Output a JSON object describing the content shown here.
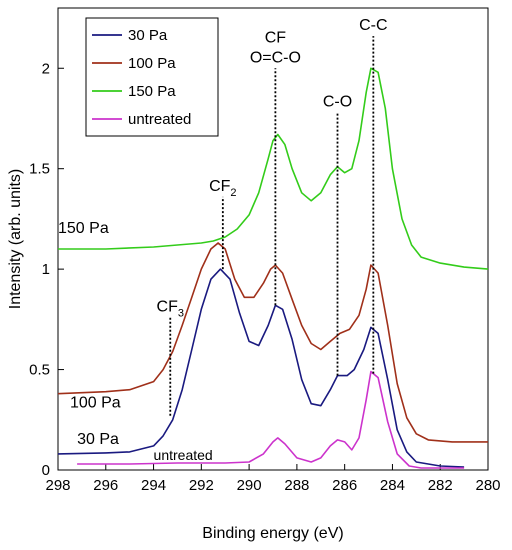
{
  "chart_data": {
    "type": "line",
    "xlabel": "Binding energy (eV)",
    "ylabel": "Intensity (arb. units)",
    "xlim": [
      298,
      280
    ],
    "ylim": [
      0,
      2.3
    ],
    "x_reversed": true,
    "x_ticks": [
      298,
      296,
      294,
      292,
      290,
      288,
      286,
      284,
      282,
      280
    ],
    "y_ticks": [
      0,
      0.5,
      1,
      1.5,
      2
    ],
    "y_tick_labels": [
      "0",
      "0.5",
      "1",
      "1.5",
      "2"
    ],
    "grid": false,
    "legend_position": "top-left",
    "series": [
      {
        "name": "30 Pa",
        "color": "#1a1a80",
        "label": "30 Pa",
        "points": [
          [
            298,
            0.08
          ],
          [
            296,
            0.085
          ],
          [
            295,
            0.09
          ],
          [
            294,
            0.12
          ],
          [
            293.6,
            0.17
          ],
          [
            293.2,
            0.25
          ],
          [
            292.8,
            0.4
          ],
          [
            292.4,
            0.6
          ],
          [
            292,
            0.8
          ],
          [
            291.6,
            0.95
          ],
          [
            291.2,
            1.0
          ],
          [
            290.8,
            0.95
          ],
          [
            290.4,
            0.78
          ],
          [
            290,
            0.64
          ],
          [
            289.6,
            0.62
          ],
          [
            289.2,
            0.72
          ],
          [
            288.9,
            0.82
          ],
          [
            288.6,
            0.8
          ],
          [
            288.2,
            0.65
          ],
          [
            287.8,
            0.45
          ],
          [
            287.4,
            0.33
          ],
          [
            287,
            0.32
          ],
          [
            286.6,
            0.4
          ],
          [
            286.3,
            0.47
          ],
          [
            285.9,
            0.47
          ],
          [
            285.6,
            0.5
          ],
          [
            285.2,
            0.6
          ],
          [
            284.9,
            0.71
          ],
          [
            284.6,
            0.68
          ],
          [
            284.2,
            0.45
          ],
          [
            283.8,
            0.2
          ],
          [
            283.4,
            0.09
          ],
          [
            283,
            0.04
          ],
          [
            282,
            0.02
          ],
          [
            281,
            0.015
          ]
        ]
      },
      {
        "name": "100 Pa",
        "color": "#a0301a",
        "label": "100 Pa",
        "points": [
          [
            298,
            0.38
          ],
          [
            296,
            0.39
          ],
          [
            295,
            0.4
          ],
          [
            294,
            0.44
          ],
          [
            293.6,
            0.5
          ],
          [
            293.2,
            0.59
          ],
          [
            292.8,
            0.72
          ],
          [
            292.4,
            0.86
          ],
          [
            292,
            1.0
          ],
          [
            291.6,
            1.1
          ],
          [
            291.3,
            1.13
          ],
          [
            291,
            1.1
          ],
          [
            290.6,
            0.95
          ],
          [
            290.2,
            0.86
          ],
          [
            289.8,
            0.86
          ],
          [
            289.4,
            0.93
          ],
          [
            289.1,
            1.0
          ],
          [
            288.9,
            1.02
          ],
          [
            288.6,
            0.98
          ],
          [
            288.2,
            0.85
          ],
          [
            287.8,
            0.72
          ],
          [
            287.4,
            0.63
          ],
          [
            287,
            0.6
          ],
          [
            286.6,
            0.64
          ],
          [
            286.2,
            0.68
          ],
          [
            285.8,
            0.7
          ],
          [
            285.4,
            0.77
          ],
          [
            285.1,
            0.9
          ],
          [
            284.9,
            1.02
          ],
          [
            284.6,
            0.98
          ],
          [
            284.2,
            0.72
          ],
          [
            283.8,
            0.43
          ],
          [
            283.4,
            0.26
          ],
          [
            283,
            0.18
          ],
          [
            282.5,
            0.15
          ],
          [
            281.5,
            0.14
          ],
          [
            280,
            0.14
          ]
        ]
      },
      {
        "name": "150 Pa",
        "color": "#33cc1a",
        "label": "150 Pa",
        "points": [
          [
            298,
            1.1
          ],
          [
            296,
            1.1
          ],
          [
            294,
            1.11
          ],
          [
            293,
            1.12
          ],
          [
            292,
            1.13
          ],
          [
            291.5,
            1.14
          ],
          [
            291,
            1.16
          ],
          [
            290.5,
            1.2
          ],
          [
            290,
            1.27
          ],
          [
            289.6,
            1.38
          ],
          [
            289.2,
            1.55
          ],
          [
            289,
            1.64
          ],
          [
            288.8,
            1.67
          ],
          [
            288.5,
            1.62
          ],
          [
            288.2,
            1.5
          ],
          [
            287.8,
            1.38
          ],
          [
            287.4,
            1.34
          ],
          [
            287,
            1.38
          ],
          [
            286.6,
            1.47
          ],
          [
            286.3,
            1.51
          ],
          [
            286,
            1.48
          ],
          [
            285.7,
            1.5
          ],
          [
            285.4,
            1.64
          ],
          [
            285.1,
            1.88
          ],
          [
            284.9,
            2.0
          ],
          [
            284.6,
            1.98
          ],
          [
            284.3,
            1.8
          ],
          [
            284,
            1.5
          ],
          [
            283.6,
            1.25
          ],
          [
            283.2,
            1.12
          ],
          [
            282.8,
            1.06
          ],
          [
            282,
            1.03
          ],
          [
            281,
            1.01
          ],
          [
            280,
            1.0
          ]
        ]
      },
      {
        "name": "untreated",
        "color": "#cc33cc",
        "label": "untreated",
        "points": [
          [
            297.2,
            0.03
          ],
          [
            295,
            0.03
          ],
          [
            293,
            0.035
          ],
          [
            291,
            0.035
          ],
          [
            290,
            0.04
          ],
          [
            289.4,
            0.08
          ],
          [
            289,
            0.14
          ],
          [
            288.8,
            0.16
          ],
          [
            288.5,
            0.13
          ],
          [
            288,
            0.06
          ],
          [
            287.4,
            0.04
          ],
          [
            287,
            0.06
          ],
          [
            286.6,
            0.12
          ],
          [
            286.3,
            0.15
          ],
          [
            286,
            0.14
          ],
          [
            285.7,
            0.1
          ],
          [
            285.4,
            0.16
          ],
          [
            285.1,
            0.35
          ],
          [
            284.9,
            0.49
          ],
          [
            284.6,
            0.46
          ],
          [
            284.2,
            0.24
          ],
          [
            283.8,
            0.08
          ],
          [
            283.3,
            0.02
          ],
          [
            282.8,
            0.01
          ],
          [
            282,
            0.01
          ],
          [
            281,
            0.01
          ]
        ]
      }
    ],
    "series_labels": {
      "150 Pa": {
        "x": 298,
        "y": 1.18
      },
      "100 Pa": {
        "x": 297.5,
        "y": 0.31
      },
      "30 Pa": {
        "x": 297.2,
        "y": 0.13
      },
      "untreated": {
        "x": 294.0,
        "y": 0.05
      }
    },
    "annotations": [
      {
        "text": "CF",
        "sub": "3",
        "x": 293.3,
        "y_bottom": 0.27,
        "y_top": 0.76
      },
      {
        "text": "CF",
        "sub": "2",
        "x": 291.1,
        "y_bottom": 1.0,
        "y_top": 1.36
      },
      {
        "text": "CF",
        "sub": "",
        "line2": "O=C-O",
        "x": 288.9,
        "y_bottom": 0.82,
        "y_top": 2.0
      },
      {
        "text": "C-O",
        "sub": "",
        "x": 286.3,
        "y_bottom": 0.47,
        "y_top": 1.78
      },
      {
        "text": "C-C",
        "sub": "",
        "x": 284.8,
        "y_bottom": 0.48,
        "y_top": 2.16
      }
    ]
  }
}
